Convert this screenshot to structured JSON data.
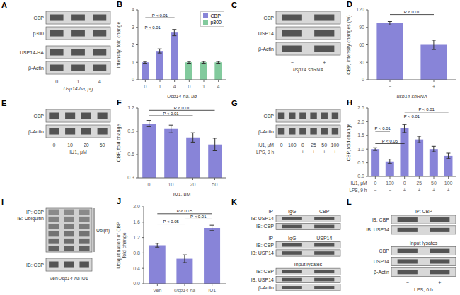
{
  "chart_data": [
    {
      "type": "blot",
      "title": "A",
      "sections": [
        {
          "rows": [
            "CBP",
            "p300"
          ]
        },
        {
          "rows": [
            "USP14-HA",
            "β-Actin"
          ]
        }
      ],
      "categories": [
        "0",
        "1",
        "4"
      ],
      "xlabel": "Usp14-ha, μg"
    },
    {
      "type": "bar",
      "title": "B",
      "categories": [
        "0",
        "1",
        "4",
        "0",
        "1",
        "4"
      ],
      "series": [
        {
          "name": "CBP",
          "color": "#8884d8",
          "values": [
            1.0,
            1.65,
            2.7,
            null,
            null,
            null
          ],
          "errors": [
            0.05,
            0.12,
            0.18,
            null,
            null,
            null
          ]
        },
        {
          "name": "p300",
          "color": "#82ca9d",
          "values": [
            null,
            null,
            null,
            1.0,
            1.0,
            1.0
          ],
          "errors": [
            null,
            null,
            null,
            0.05,
            0.05,
            0.05
          ]
        }
      ],
      "ylabel": "Intensity, fold change",
      "xlabel": "Usp14-ha, μg",
      "ylim": [
        0,
        4
      ],
      "yticks": [
        0,
        1,
        2,
        3,
        4
      ],
      "legend": "upper right",
      "annotations": [
        {
          "text": "P < 0.01",
          "from": 0,
          "to": 2,
          "y": 3.55
        },
        {
          "text": "P < 0.01",
          "from": 0,
          "to": 1,
          "y": 2.85
        }
      ]
    },
    {
      "type": "blot",
      "title": "C",
      "sections": [
        {
          "rows": [
            "CBP",
            "USP14",
            "β-Actin"
          ]
        }
      ],
      "categories": [
        "−",
        "+"
      ],
      "xlabel": "usp14 shRNA"
    },
    {
      "type": "bar",
      "title": "D",
      "categories": [
        "−",
        "+"
      ],
      "values": [
        97,
        60
      ],
      "errors": [
        3,
        8
      ],
      "color": "#8884d8",
      "ylabel": "CBP, intensity changes (%)",
      "xlabel": "usp14 shRNA",
      "ylim": [
        0,
        120
      ],
      "yticks": [
        0,
        30,
        60,
        90,
        120
      ],
      "annotations": [
        {
          "text": "P < 0.01",
          "from": 0,
          "to": 1,
          "y": 112
        }
      ]
    },
    {
      "type": "blot",
      "title": "E",
      "sections": [
        {
          "rows": [
            "CBP",
            "β-Actin"
          ]
        }
      ],
      "categories": [
        "0",
        "10",
        "20",
        "50"
      ],
      "xlabel": "IU1, μM"
    },
    {
      "type": "bar",
      "title": "F",
      "categories": [
        "0",
        "10",
        "20",
        "50"
      ],
      "values": [
        1.0,
        0.93,
        0.82,
        0.73
      ],
      "errors": [
        0.04,
        0.05,
        0.06,
        0.08
      ],
      "color": "#8884d8",
      "ylabel": "CBP, fold change",
      "xlabel": "IU1, μM",
      "ylim": [
        0.3,
        1.2
      ],
      "yticks": [
        0.3,
        0.6,
        0.9,
        1.2
      ],
      "annotations": [
        {
          "text": "P < 0.01",
          "from": 0,
          "to": 3,
          "y": 1.17
        },
        {
          "text": "P < 0.01",
          "from": 0,
          "to": 2,
          "y": 1.1
        }
      ]
    },
    {
      "type": "blot",
      "title": "G",
      "sections": [
        {
          "rows": [
            "CBP",
            "β-Actin"
          ]
        }
      ],
      "categories": [
        "0",
        "100",
        "0",
        "25",
        "50",
        "100"
      ],
      "categories2": [
        "−",
        "−",
        "+",
        "+",
        "+",
        "+"
      ],
      "xlabel_rows": [
        "IU1, μM",
        "LPS, 9 h"
      ]
    },
    {
      "type": "bar",
      "title": "H",
      "categories": [
        "0",
        "100",
        "0",
        "25",
        "50",
        "100"
      ],
      "categories2": [
        "−",
        "−",
        "+",
        "+",
        "+",
        "+"
      ],
      "xlabel_rows": [
        "IU1, μM",
        "LPS, 9 h"
      ],
      "values": [
        1.0,
        0.55,
        1.75,
        1.35,
        1.0,
        0.75
      ],
      "errors": [
        0.05,
        0.08,
        0.15,
        0.12,
        0.1,
        0.1
      ],
      "color": "#8884d8",
      "ylabel": "CBP, fold change",
      "ylim": [
        0,
        2.5
      ],
      "yticks": [
        {
          "value": 0,
          "label": "0.0"
        },
        0.5,
        {
          "value": 1.0,
          "label": "1.0"
        },
        1.5,
        {
          "value": 2.0,
          "label": "2.0"
        },
        2.5
      ],
      "annotations": [
        {
          "text": "P < 0.01",
          "from": 2,
          "to": 5,
          "y": 2.35
        },
        {
          "text": "P < 0.01",
          "from": 2,
          "to": 3,
          "y": 2.1
        },
        {
          "text": "P < 0.01",
          "from": 0,
          "to": 1,
          "y": 1.65
        },
        {
          "text": "P < 0.05",
          "from": 0,
          "to": 2,
          "y": 1.2
        }
      ]
    },
    {
      "type": "blot",
      "title": "I",
      "sections": [
        {
          "rows": [
            "IP: CBP",
            "IB: Ubiquitin"
          ],
          "side_label": "Ubi(n)"
        },
        {
          "rows": [
            "IB: CBP"
          ]
        }
      ],
      "categories": [
        "Veh",
        "Usp14-ha",
        "IU1"
      ]
    },
    {
      "type": "bar",
      "title": "J",
      "categories": [
        "Veh",
        "Usp14-ha",
        "IU1"
      ],
      "values": [
        1.0,
        0.65,
        1.45
      ],
      "errors": [
        0.05,
        0.1,
        0.07
      ],
      "color": "#8884d8",
      "ylabel": "Ubiquitination of CBP\nfold change",
      "ylim": [
        0,
        2.0
      ],
      "yticks": [
        {
          "value": 0,
          "label": "0.0"
        },
        0.4,
        0.8,
        1.2,
        1.6,
        {
          "value": 2.0,
          "label": "2.0"
        }
      ],
      "annotations": [
        {
          "text": "P < 0.05",
          "from": 0,
          "to": 2,
          "y": 1.82
        },
        {
          "text": "P < 0.05",
          "from": 0,
          "to": 1,
          "y": 1.55
        },
        {
          "text": "P < 0.01",
          "from": 1,
          "to": 2,
          "y": 1.68
        }
      ]
    },
    {
      "type": "blot",
      "title": "K",
      "sections": [
        {
          "header": "IP",
          "lane_headers": [
            "IgG",
            "CBP"
          ],
          "rows": [
            "IB: USP14",
            "IB: CBP"
          ]
        },
        {
          "header": "IP",
          "lane_headers": [
            "IgG",
            "USP14"
          ],
          "rows": [
            "IB: CBP",
            "IB: USP14"
          ]
        },
        {
          "header": "Input lysates",
          "rows": [
            "IB: CBP",
            "IB: USP14",
            "β-Actin"
          ]
        }
      ]
    },
    {
      "type": "blot",
      "title": "L",
      "sections": [
        {
          "header": "IP: CBP",
          "rows": [
            "IB: CBP",
            "IB: USP14"
          ]
        },
        {
          "header": "Input lysates",
          "rows": [
            "CBP",
            "USP14",
            "β-Actin"
          ]
        }
      ],
      "categories": [
        "−",
        "+"
      ],
      "xlabel": "LPS, 6 h"
    }
  ]
}
